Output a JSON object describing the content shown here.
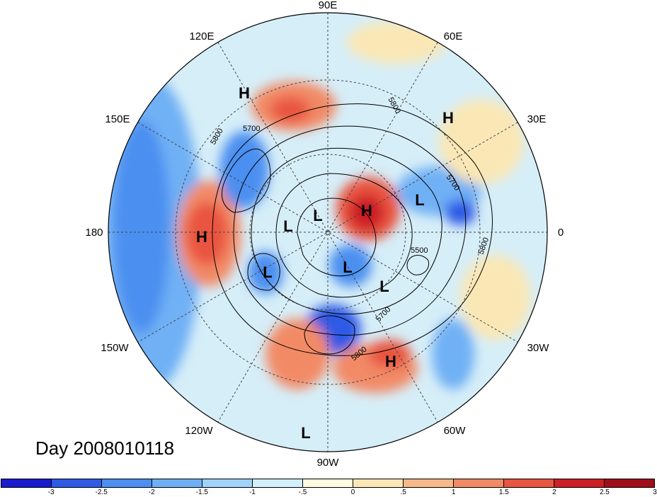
{
  "title": "Day 2008010118",
  "longitude_labels": {
    "lon_90e": "90E",
    "lon_120e": "120E",
    "lon_60e": "60E",
    "lon_150e": "150E",
    "lon_30e": "30E",
    "lon_180": "180",
    "lon_0": "0",
    "lon_150w": "150W",
    "lon_30w": "30W",
    "lon_120w": "120W",
    "lon_60w": "60W",
    "lon_90w": "90W"
  },
  "pressure_centers": [
    {
      "kind": "H"
    },
    {
      "kind": "H"
    },
    {
      "kind": "H"
    },
    {
      "kind": "H"
    },
    {
      "kind": "H"
    },
    {
      "kind": "L"
    },
    {
      "kind": "L"
    },
    {
      "kind": "L"
    },
    {
      "kind": "L"
    },
    {
      "kind": "L"
    },
    {
      "kind": "L"
    },
    {
      "kind": "L"
    }
  ],
  "contour_labels": [
    "5800",
    "5700",
    "5800",
    "5700",
    "5800",
    "5500",
    "5700",
    "5800"
  ],
  "colorbar": {
    "colors": [
      "#1a1ad0",
      "#2f5ae6",
      "#4c8ff0",
      "#6fb0f5",
      "#9fd3fa",
      "#d3effb",
      "#fdfbe0",
      "#fae7b5",
      "#f7b98a",
      "#f28a66",
      "#e9553f",
      "#cc1f26",
      "#a00d1b"
    ],
    "ticks": [
      "-3",
      "-2.5",
      "-2",
      "-1.5",
      "-1",
      "-.5",
      "0",
      ".5",
      "1",
      "1.5",
      "2",
      "2.5",
      "3"
    ]
  },
  "colors": {
    "ocean_cool": "#9fd3fa",
    "warm_anomaly": "#f28a66",
    "strong_warm": "#cc1f26",
    "strong_cool": "#2f5ae6"
  }
}
